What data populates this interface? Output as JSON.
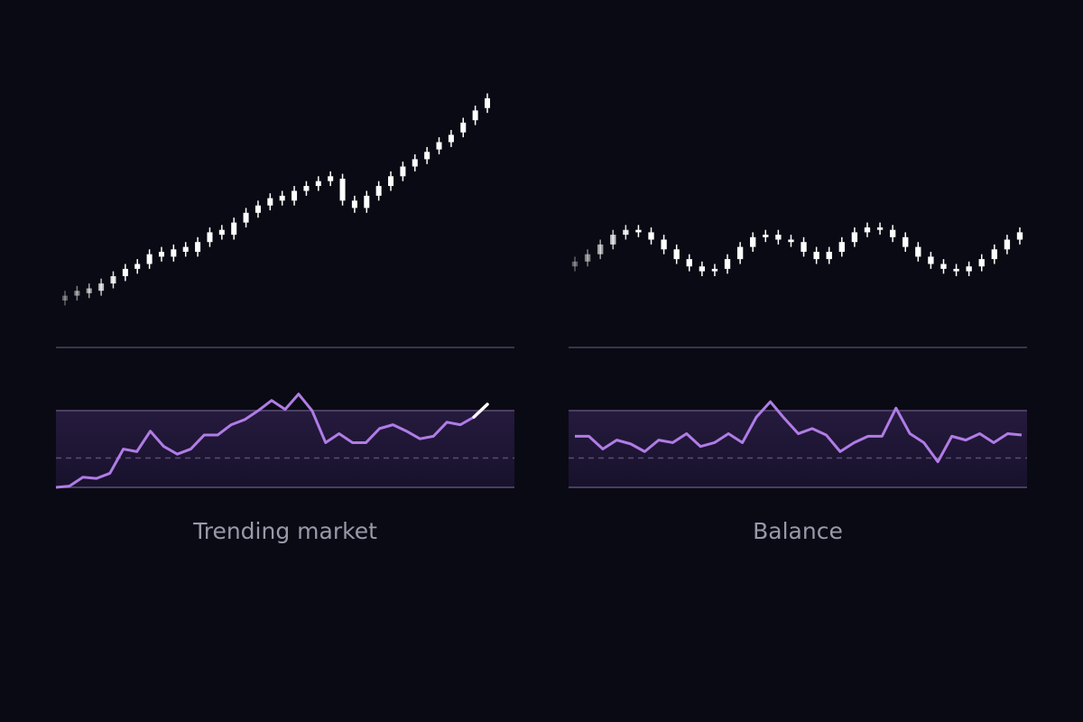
{
  "chart_data": [
    {
      "type": "candlestick",
      "title": "Trending market",
      "color": "#ffffff",
      "ylim": [
        0,
        100
      ],
      "open": [
        10,
        12,
        15,
        14,
        17,
        20,
        23,
        25,
        30,
        28,
        32,
        30,
        34,
        39,
        37,
        42,
        46,
        49,
        53,
        51,
        55,
        57,
        59,
        60,
        51,
        48,
        53,
        57,
        61,
        65,
        68,
        72,
        75,
        79,
        84,
        89
      ],
      "high": [
        14,
        16,
        17,
        19,
        22,
        25,
        27,
        31,
        32,
        33,
        34,
        36,
        40,
        41,
        44,
        48,
        51,
        54,
        55,
        57,
        59,
        61,
        63,
        62,
        53,
        55,
        59,
        63,
        67,
        70,
        73,
        77,
        80,
        85,
        90,
        95
      ],
      "low": [
        8,
        10,
        11,
        12,
        15,
        18,
        21,
        23,
        26,
        26,
        28,
        28,
        32,
        35,
        35,
        40,
        44,
        47,
        49,
        49,
        53,
        55,
        57,
        49,
        46,
        46,
        51,
        55,
        59,
        63,
        66,
        70,
        73,
        77,
        82,
        87
      ],
      "close": [
        12,
        14,
        13,
        17,
        20,
        23,
        25,
        29,
        28,
        31,
        30,
        34,
        38,
        37,
        42,
        46,
        49,
        52,
        51,
        55,
        57,
        59,
        61,
        51,
        48,
        53,
        57,
        61,
        65,
        68,
        71,
        75,
        78,
        83,
        88,
        93
      ]
    },
    {
      "type": "line",
      "color": "#b07ce6",
      "ylim": [
        10,
        95
      ],
      "levels": [
        20,
        43,
        80
      ],
      "values": [
        20,
        21,
        28,
        27,
        31,
        50,
        48,
        64,
        52,
        46,
        50,
        61,
        61,
        69,
        73,
        80,
        88,
        81,
        93,
        80,
        55,
        62,
        55,
        55,
        66,
        69,
        64,
        58,
        60,
        71,
        69,
        75,
        85
      ]
    },
    {
      "type": "candlestick",
      "title": "Balance",
      "color": "#ffffff",
      "ylim": [
        0,
        100
      ],
      "open": [
        24,
        26,
        29,
        33,
        37,
        39,
        38,
        35,
        31,
        27,
        24,
        22,
        23,
        27,
        32,
        36,
        37,
        35,
        34,
        30,
        27,
        30,
        34,
        38,
        40,
        39,
        36,
        32,
        28,
        25,
        23,
        22,
        24,
        27,
        31,
        35
      ],
      "high": [
        28,
        31,
        35,
        39,
        41,
        41,
        40,
        37,
        33,
        29,
        26,
        25,
        29,
        34,
        38,
        39,
        39,
        37,
        36,
        32,
        32,
        36,
        40,
        42,
        42,
        41,
        38,
        34,
        30,
        27,
        25,
        26,
        29,
        33,
        37,
        40
      ],
      "low": [
        22,
        24,
        27,
        31,
        35,
        36,
        33,
        29,
        25,
        22,
        20,
        20,
        21,
        25,
        30,
        34,
        33,
        32,
        28,
        25,
        25,
        28,
        32,
        36,
        37,
        34,
        30,
        26,
        23,
        21,
        20,
        20,
        22,
        25,
        29,
        33
      ],
      "close": [
        26,
        29,
        33,
        37,
        39,
        38,
        35,
        31,
        27,
        24,
        22,
        23,
        27,
        32,
        36,
        37,
        35,
        34,
        30,
        27,
        30,
        34,
        38,
        40,
        39,
        36,
        32,
        28,
        25,
        23,
        22,
        24,
        27,
        31,
        35,
        38
      ]
    },
    {
      "type": "line",
      "color": "#b07ce6",
      "ylim": [
        10,
        95
      ],
      "levels": [
        20,
        43,
        80
      ],
      "values": [
        60,
        60,
        50,
        57,
        54,
        48,
        57,
        55,
        62,
        52,
        55,
        62,
        55,
        75,
        87,
        74,
        62,
        66,
        61,
        48,
        55,
        60,
        60,
        82,
        62,
        55,
        40,
        60,
        57,
        62,
        55,
        62,
        61
      ]
    }
  ]
}
